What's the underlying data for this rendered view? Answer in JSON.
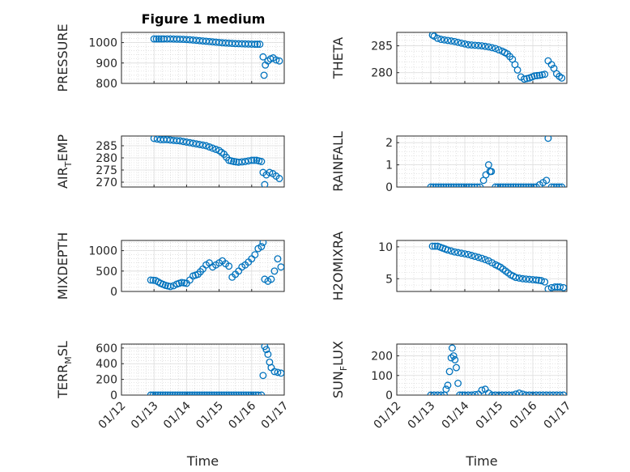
{
  "figure": {
    "title": "Figure 1 medium",
    "marker_color": "#0072BD"
  },
  "chart_data": [
    {
      "type": "scatter",
      "ylabel": "PRESSURE",
      "ylim": [
        800,
        1050
      ],
      "yticks": [
        800,
        900,
        1000
      ],
      "xlim": [
        "01/12",
        "01/17"
      ],
      "x_tick_labels": [],
      "grid": true,
      "points": [
        [
          13.0,
          1018
        ],
        [
          13.15,
          1018
        ],
        [
          13.3,
          1018
        ],
        [
          13.5,
          1018
        ],
        [
          13.7,
          1017
        ],
        [
          13.9,
          1016
        ],
        [
          14.1,
          1014
        ],
        [
          14.3,
          1011
        ],
        [
          14.5,
          1008
        ],
        [
          14.7,
          1005
        ],
        [
          14.9,
          1002
        ],
        [
          15.1,
          999
        ],
        [
          15.3,
          997
        ],
        [
          15.5,
          995
        ],
        [
          15.7,
          994
        ],
        [
          15.9,
          993
        ],
        [
          16.1,
          992
        ],
        [
          16.25,
          992
        ],
        [
          16.35,
          930
        ],
        [
          16.38,
          840
        ],
        [
          16.42,
          890
        ],
        [
          16.5,
          910
        ],
        [
          16.58,
          920
        ],
        [
          16.66,
          925
        ],
        [
          16.75,
          915
        ],
        [
          16.85,
          910
        ]
      ]
    },
    {
      "type": "scatter",
      "ylabel": "THETA",
      "ylim": [
        278,
        287.5
      ],
      "yticks": [
        280,
        285
      ],
      "xlim": [
        "01/12",
        "01/17"
      ],
      "x_tick_labels": [],
      "grid": true,
      "points": [
        [
          13.05,
          287
        ],
        [
          13.1,
          286.8
        ],
        [
          13.2,
          286.4
        ],
        [
          13.3,
          286.2
        ],
        [
          13.5,
          286
        ],
        [
          13.7,
          285.8
        ],
        [
          13.9,
          285.5
        ],
        [
          14.1,
          285.2
        ],
        [
          14.3,
          285.1
        ],
        [
          14.5,
          285
        ],
        [
          14.7,
          284.8
        ],
        [
          14.9,
          284.5
        ],
        [
          15.1,
          284
        ],
        [
          15.25,
          283.5
        ],
        [
          15.4,
          282.5
        ],
        [
          15.55,
          280.5
        ],
        [
          15.65,
          279.2
        ],
        [
          15.75,
          278.8
        ],
        [
          15.9,
          279
        ],
        [
          16.05,
          279.4
        ],
        [
          16.2,
          279.5
        ],
        [
          16.35,
          279.7
        ],
        [
          16.45,
          282.2
        ],
        [
          16.55,
          281.5
        ],
        [
          16.62,
          280.8
        ],
        [
          16.7,
          279.8
        ],
        [
          16.78,
          279.3
        ],
        [
          16.85,
          279
        ]
      ]
    },
    {
      "type": "scatter",
      "ylabel": "AIR_TEMP",
      "ylim": [
        268,
        289
      ],
      "yticks": [
        270,
        275,
        280,
        285
      ],
      "xlim": [
        "01/12",
        "01/17"
      ],
      "x_tick_labels": [],
      "grid": true,
      "points": [
        [
          13.0,
          288
        ],
        [
          13.2,
          287.5
        ],
        [
          13.4,
          287.5
        ],
        [
          13.6,
          287.2
        ],
        [
          13.8,
          287
        ],
        [
          14.0,
          286.5
        ],
        [
          14.2,
          286
        ],
        [
          14.4,
          285.5
        ],
        [
          14.6,
          285
        ],
        [
          14.8,
          284
        ],
        [
          15.0,
          283
        ],
        [
          15.15,
          281.5
        ],
        [
          15.3,
          279
        ],
        [
          15.45,
          278.5
        ],
        [
          15.6,
          278.2
        ],
        [
          15.8,
          278.5
        ],
        [
          16.0,
          279
        ],
        [
          16.15,
          279
        ],
        [
          16.3,
          278.5
        ],
        [
          16.35,
          274
        ],
        [
          16.4,
          269
        ],
        [
          16.45,
          273
        ],
        [
          16.55,
          274
        ],
        [
          16.65,
          273.5
        ],
        [
          16.75,
          272.5
        ],
        [
          16.85,
          271.5
        ]
      ]
    },
    {
      "type": "scatter",
      "ylabel": "RAINFALL",
      "ylim": [
        0,
        2.3
      ],
      "yticks": [
        0,
        1,
        2
      ],
      "xlim": [
        "01/12",
        "01/17"
      ],
      "x_tick_labels": [],
      "grid": true,
      "points": [
        [
          13.0,
          0
        ],
        [
          13.3,
          0
        ],
        [
          13.6,
          0
        ],
        [
          13.9,
          0
        ],
        [
          14.2,
          0
        ],
        [
          14.45,
          0
        ],
        [
          14.55,
          0.3
        ],
        [
          14.62,
          0.55
        ],
        [
          14.7,
          1.0
        ],
        [
          14.74,
          0.7
        ],
        [
          14.78,
          0.7
        ],
        [
          14.9,
          0
        ],
        [
          15.2,
          0
        ],
        [
          15.5,
          0
        ],
        [
          15.8,
          0
        ],
        [
          16.1,
          0
        ],
        [
          16.3,
          0.2
        ],
        [
          16.4,
          0.3
        ],
        [
          16.45,
          2.2
        ],
        [
          16.55,
          0
        ],
        [
          16.7,
          0
        ],
        [
          16.85,
          0
        ]
      ]
    },
    {
      "type": "scatter",
      "ylabel": "MIXDEPTH",
      "ylim": [
        0,
        1250
      ],
      "yticks": [
        0,
        500,
        1000
      ],
      "xlim": [
        "01/12",
        "01/17"
      ],
      "x_tick_labels": [],
      "grid": true,
      "points": [
        [
          12.9,
          280
        ],
        [
          13.05,
          270
        ],
        [
          13.2,
          200
        ],
        [
          13.35,
          150
        ],
        [
          13.5,
          120
        ],
        [
          13.6,
          140
        ],
        [
          13.7,
          180
        ],
        [
          13.85,
          220
        ],
        [
          14.0,
          200
        ],
        [
          14.1,
          280
        ],
        [
          14.2,
          380
        ],
        [
          14.35,
          420
        ],
        [
          14.5,
          550
        ],
        [
          14.6,
          650
        ],
        [
          14.7,
          700
        ],
        [
          14.8,
          600
        ],
        [
          14.9,
          650
        ],
        [
          15.0,
          700
        ],
        [
          15.1,
          750
        ],
        [
          15.2,
          680
        ],
        [
          15.3,
          620
        ],
        [
          15.4,
          350
        ],
        [
          15.5,
          420
        ],
        [
          15.6,
          500
        ],
        [
          15.7,
          600
        ],
        [
          15.8,
          650
        ],
        [
          15.9,
          720
        ],
        [
          16.0,
          800
        ],
        [
          16.1,
          900
        ],
        [
          16.2,
          1050
        ],
        [
          16.3,
          1100
        ],
        [
          16.35,
          1200
        ],
        [
          16.4,
          300
        ],
        [
          16.5,
          250
        ],
        [
          16.6,
          300
        ],
        [
          16.7,
          500
        ],
        [
          16.8,
          800
        ],
        [
          16.9,
          600
        ]
      ]
    },
    {
      "type": "scatter",
      "ylabel": "H2OMIXRA",
      "ylim": [
        3,
        11
      ],
      "yticks": [
        5,
        10
      ],
      "xlim": [
        "01/12",
        "01/17"
      ],
      "x_tick_labels": [],
      "grid": true,
      "points": [
        [
          13.05,
          10.1
        ],
        [
          13.2,
          10.1
        ],
        [
          13.35,
          9.8
        ],
        [
          13.5,
          9.5
        ],
        [
          13.7,
          9.2
        ],
        [
          13.9,
          9
        ],
        [
          14.1,
          8.8
        ],
        [
          14.3,
          8.5
        ],
        [
          14.5,
          8.2
        ],
        [
          14.7,
          7.8
        ],
        [
          14.9,
          7.2
        ],
        [
          15.05,
          6.8
        ],
        [
          15.2,
          6.2
        ],
        [
          15.35,
          5.6
        ],
        [
          15.5,
          5.2
        ],
        [
          15.7,
          5
        ],
        [
          15.9,
          4.9
        ],
        [
          16.1,
          4.8
        ],
        [
          16.25,
          4.7
        ],
        [
          16.35,
          4.5
        ],
        [
          16.45,
          3.4
        ],
        [
          16.55,
          3.6
        ],
        [
          16.65,
          3.7
        ],
        [
          16.8,
          3.7
        ],
        [
          16.9,
          3.6
        ]
      ]
    },
    {
      "type": "scatter",
      "ylabel": "TERR_MSL",
      "ylim": [
        0,
        650
      ],
      "yticks": [
        0,
        200,
        400,
        600
      ],
      "xlim": [
        "01/12",
        "01/17"
      ],
      "x_tick_labels": [
        "01/12",
        "01/13",
        "01/14",
        "01/15",
        "01/16",
        "01/17"
      ],
      "xlabel": "Time",
      "grid": true,
      "points": [
        [
          12.9,
          0
        ],
        [
          13.2,
          0
        ],
        [
          13.5,
          0
        ],
        [
          13.8,
          0
        ],
        [
          14.1,
          0
        ],
        [
          14.4,
          0
        ],
        [
          14.7,
          0
        ],
        [
          15.0,
          0
        ],
        [
          15.3,
          0
        ],
        [
          15.6,
          0
        ],
        [
          15.9,
          0
        ],
        [
          16.2,
          0
        ],
        [
          16.3,
          0
        ],
        [
          16.35,
          250
        ],
        [
          16.4,
          620
        ],
        [
          16.45,
          580
        ],
        [
          16.5,
          520
        ],
        [
          16.55,
          420
        ],
        [
          16.6,
          350
        ],
        [
          16.7,
          300
        ],
        [
          16.8,
          290
        ],
        [
          16.9,
          280
        ]
      ]
    },
    {
      "type": "scatter",
      "ylabel": "SUN_FLUX",
      "ylim": [
        0,
        260
      ],
      "yticks": [
        0,
        100,
        200
      ],
      "xlim": [
        "01/12",
        "01/17"
      ],
      "x_tick_labels": [
        "01/12",
        "01/13",
        "01/14",
        "01/15",
        "01/16",
        "01/17"
      ],
      "xlabel": "Time",
      "grid": true,
      "points": [
        [
          13.0,
          0
        ],
        [
          13.2,
          0
        ],
        [
          13.4,
          0
        ],
        [
          13.45,
          30
        ],
        [
          13.5,
          50
        ],
        [
          13.55,
          120
        ],
        [
          13.6,
          190
        ],
        [
          13.63,
          240
        ],
        [
          13.67,
          200
        ],
        [
          13.71,
          180
        ],
        [
          13.75,
          140
        ],
        [
          13.8,
          60
        ],
        [
          13.85,
          0
        ],
        [
          14.0,
          0
        ],
        [
          14.2,
          0
        ],
        [
          14.4,
          5
        ],
        [
          14.5,
          25
        ],
        [
          14.6,
          30
        ],
        [
          14.7,
          10
        ],
        [
          14.8,
          0
        ],
        [
          15.0,
          0
        ],
        [
          15.2,
          0
        ],
        [
          15.4,
          0
        ],
        [
          15.5,
          5
        ],
        [
          15.6,
          10
        ],
        [
          15.7,
          5
        ],
        [
          15.8,
          0
        ],
        [
          16.0,
          0
        ],
        [
          16.2,
          0
        ],
        [
          16.4,
          0
        ],
        [
          16.6,
          0
        ],
        [
          16.8,
          0
        ],
        [
          16.9,
          0
        ]
      ]
    }
  ]
}
